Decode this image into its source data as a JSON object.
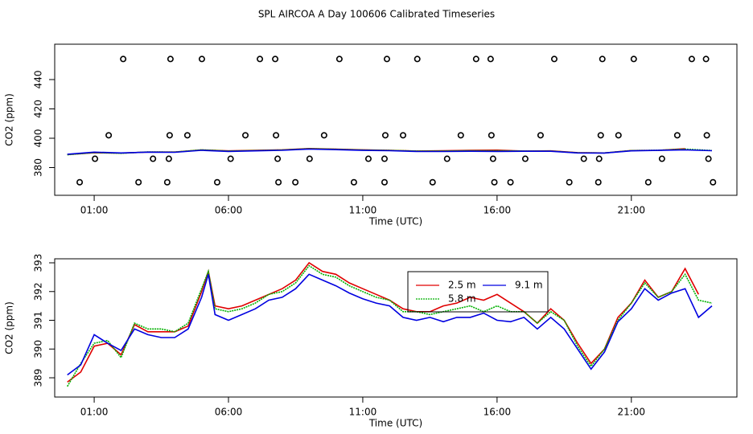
{
  "title": "SPL AIRCOA A  Day 100606  Calibrated Timeseries",
  "chart_data": [
    {
      "type": "line",
      "xlabel": "Time (UTC)",
      "ylabel": "CO2 (ppm)",
      "xlim": [
        -0.47,
        24.93
      ],
      "xticks": [
        {
          "value": 1,
          "label": "01:00"
        },
        {
          "value": 6,
          "label": "06:00"
        },
        {
          "value": 11,
          "label": "11:00"
        },
        {
          "value": 16,
          "label": "16:00"
        },
        {
          "value": 21,
          "label": "21:00"
        }
      ],
      "ylim": [
        361.1,
        464.1
      ],
      "yticks": [
        380,
        400,
        420,
        440
      ],
      "x": [
        0,
        1,
        2,
        3,
        4,
        5,
        6,
        7,
        8,
        9,
        10,
        11,
        12,
        13,
        14,
        15,
        16,
        17,
        18,
        19,
        20,
        21,
        22,
        23,
        24
      ],
      "series": [
        {
          "color": "#e00000",
          "values": [
            388.85,
            390.1,
            389.8,
            390.6,
            390.6,
            392.0,
            391.4,
            391.7,
            392.1,
            393.0,
            392.6,
            392.1,
            391.7,
            391.3,
            391.5,
            391.8,
            391.9,
            391.3,
            391.4,
            390.2,
            390.0,
            391.6,
            391.8,
            392.8,
            null
          ]
        },
        {
          "color": "#00b000",
          "linestyle": "dotted",
          "values": [
            388.7,
            390.2,
            389.7,
            390.7,
            390.6,
            392.1,
            391.3,
            391.6,
            392.0,
            392.9,
            392.5,
            392.0,
            391.7,
            391.3,
            391.3,
            391.5,
            391.5,
            391.3,
            391.3,
            390.1,
            390.0,
            391.6,
            391.8,
            392.6,
            391.6
          ]
        },
        {
          "color": "#0000e0",
          "values": [
            389.1,
            390.5,
            389.95,
            390.5,
            390.4,
            391.8,
            391.0,
            391.4,
            391.8,
            392.6,
            392.2,
            391.75,
            391.5,
            391.0,
            390.95,
            391.1,
            391.0,
            391.1,
            391.1,
            390.0,
            389.9,
            391.4,
            391.7,
            392.1,
            391.5
          ]
        }
      ],
      "points": {
        "color": "#000000",
        "x": [
          2.08,
          3.84,
          5.01,
          7.17,
          7.74,
          10.13,
          11.9,
          13.03,
          15.22,
          15.76,
          18.13,
          19.92,
          21.09,
          23.25,
          23.78,
          1.54,
          3.81,
          4.47,
          6.63,
          7.77,
          9.56,
          11.84,
          12.5,
          14.65,
          15.79,
          17.62,
          19.86,
          20.52,
          22.71,
          23.81,
          1.03,
          3.19,
          3.78,
          6.08,
          7.83,
          9.02,
          11.21,
          11.81,
          14.14,
          15.85,
          17.05,
          19.23,
          19.8,
          22.14,
          23.87,
          0.46,
          2.65,
          3.72,
          5.58,
          7.86,
          8.49,
          10.67,
          11.81,
          13.6,
          15.9,
          16.5,
          18.69,
          19.77,
          21.63,
          24.04
        ],
        "values": [
          454,
          454,
          454,
          454,
          454,
          454,
          454,
          454,
          454,
          454,
          454,
          454,
          454,
          454,
          454,
          402,
          402,
          402,
          402,
          402,
          402,
          402,
          402,
          402,
          402,
          402,
          402,
          402,
          402,
          402,
          386,
          386,
          386,
          386,
          386,
          386,
          386,
          386,
          386,
          386,
          386,
          386,
          386,
          386,
          386,
          370,
          370,
          370,
          370,
          370,
          370,
          370,
          370,
          370,
          370,
          370,
          370,
          370,
          370,
          370
        ]
      }
    },
    {
      "type": "line",
      "xlabel": "Time (UTC)",
      "ylabel": "CO2 (ppm)",
      "xlim": [
        -0.47,
        24.93
      ],
      "xticks": [
        {
          "value": 1,
          "label": "01:00"
        },
        {
          "value": 6,
          "label": "06:00"
        },
        {
          "value": 11,
          "label": "11:00"
        },
        {
          "value": 16,
          "label": "16:00"
        },
        {
          "value": 21,
          "label": "21:00"
        }
      ],
      "ylim": [
        388.33,
        393.14
      ],
      "yticks": [
        389,
        390,
        391,
        392,
        393
      ],
      "legend": "top",
      "x": [
        0,
        0.5,
        1,
        1.5,
        2,
        2.5,
        3,
        3.5,
        4,
        4.5,
        5,
        5.25,
        5.5,
        6,
        6.5,
        7,
        7.5,
        8,
        8.5,
        9,
        9.5,
        10,
        10.5,
        11,
        11.5,
        12,
        12.5,
        13,
        13.5,
        14,
        14.5,
        15,
        15.5,
        16,
        16.5,
        17,
        17.5,
        18,
        18.5,
        19,
        19.5,
        20,
        20.5,
        21,
        21.5,
        22,
        22.5,
        23,
        23.5,
        24
      ],
      "series": [
        {
          "name": "2.5 m",
          "color": "#e00000",
          "values": [
            388.85,
            389.2,
            390.1,
            390.2,
            389.8,
            390.85,
            390.6,
            390.6,
            390.6,
            390.8,
            392.0,
            392.7,
            391.5,
            391.4,
            391.5,
            391.7,
            391.9,
            392.1,
            392.4,
            393.0,
            392.7,
            392.6,
            392.3,
            392.1,
            391.9,
            391.7,
            391.4,
            391.3,
            391.3,
            391.5,
            391.6,
            391.8,
            391.7,
            391.9,
            391.6,
            391.3,
            390.9,
            391.4,
            391.0,
            390.2,
            389.5,
            390.0,
            391.1,
            391.6,
            392.4,
            391.8,
            392.0,
            392.8,
            391.9,
            null
          ]
        },
        {
          "name": "5.8 m",
          "color": "#00b000",
          "linestyle": "dotted",
          "values": [
            388.7,
            389.5,
            390.2,
            390.3,
            389.7,
            390.9,
            390.7,
            390.7,
            390.6,
            390.9,
            392.1,
            392.7,
            391.4,
            391.3,
            391.4,
            391.6,
            391.9,
            392.0,
            392.3,
            392.9,
            392.6,
            392.5,
            392.2,
            392.0,
            391.8,
            391.7,
            391.3,
            391.3,
            391.2,
            391.3,
            391.4,
            391.5,
            391.3,
            391.5,
            391.3,
            391.3,
            390.9,
            391.3,
            391.0,
            390.1,
            389.4,
            390.0,
            391.0,
            391.6,
            392.3,
            391.8,
            392.0,
            392.6,
            391.7,
            391.6
          ]
        },
        {
          "name": "9.1 m",
          "color": "#0000e0",
          "values": [
            389.1,
            389.45,
            390.5,
            390.2,
            389.95,
            390.7,
            390.5,
            390.4,
            390.4,
            390.7,
            391.8,
            392.6,
            391.2,
            391.0,
            391.2,
            391.4,
            391.7,
            391.8,
            392.1,
            392.6,
            392.4,
            392.2,
            391.95,
            391.75,
            391.6,
            391.5,
            391.1,
            391.0,
            391.1,
            390.95,
            391.1,
            391.1,
            391.25,
            391.0,
            390.95,
            391.1,
            390.7,
            391.1,
            390.7,
            390.0,
            389.3,
            389.9,
            390.95,
            391.4,
            392.1,
            391.7,
            391.95,
            392.1,
            391.1,
            391.5
          ]
        }
      ]
    }
  ]
}
